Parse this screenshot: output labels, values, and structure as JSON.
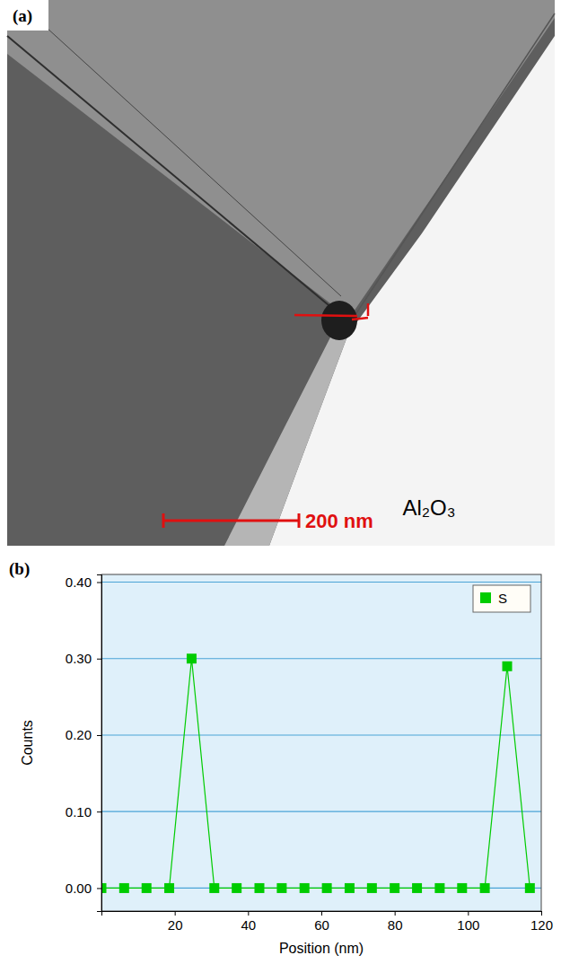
{
  "panel_labels": [
    "(a)",
    "(b)"
  ],
  "image": {
    "label": "Al₂O₃",
    "scale_bar": "200 nm"
  },
  "chart_data": {
    "type": "line",
    "x": [
      0,
      6.2,
      12.3,
      18.5,
      24.6,
      30.8,
      36.9,
      43.1,
      49.2,
      55.4,
      61.5,
      67.7,
      73.8,
      80.0,
      86.1,
      92.3,
      98.4,
      104.6,
      110.7,
      116.9
    ],
    "series": [
      {
        "name": "S",
        "color": "#00cc00",
        "marker": "square",
        "values": [
          0,
          0,
          0,
          0,
          0.3,
          0,
          0,
          0,
          0,
          0,
          0,
          0,
          0,
          0,
          0,
          0,
          0,
          0,
          0.29,
          0
        ]
      }
    ],
    "xlabel": "Position (nm)",
    "ylabel": "Counts",
    "xlim": [
      0,
      120
    ],
    "xticks": [
      20,
      40,
      60,
      80,
      100,
      120
    ],
    "ylim": [
      -0.03,
      0.41
    ],
    "yticks": [
      {
        "value": 0,
        "label": "0.00"
      },
      {
        "value": 0.1,
        "label": "0.10"
      },
      {
        "value": 0.2,
        "label": "0.20"
      },
      {
        "value": 0.3,
        "label": "0.30"
      },
      {
        "value": 0.4,
        "label": "0.40"
      }
    ],
    "grid": true,
    "legend": "upper right"
  }
}
